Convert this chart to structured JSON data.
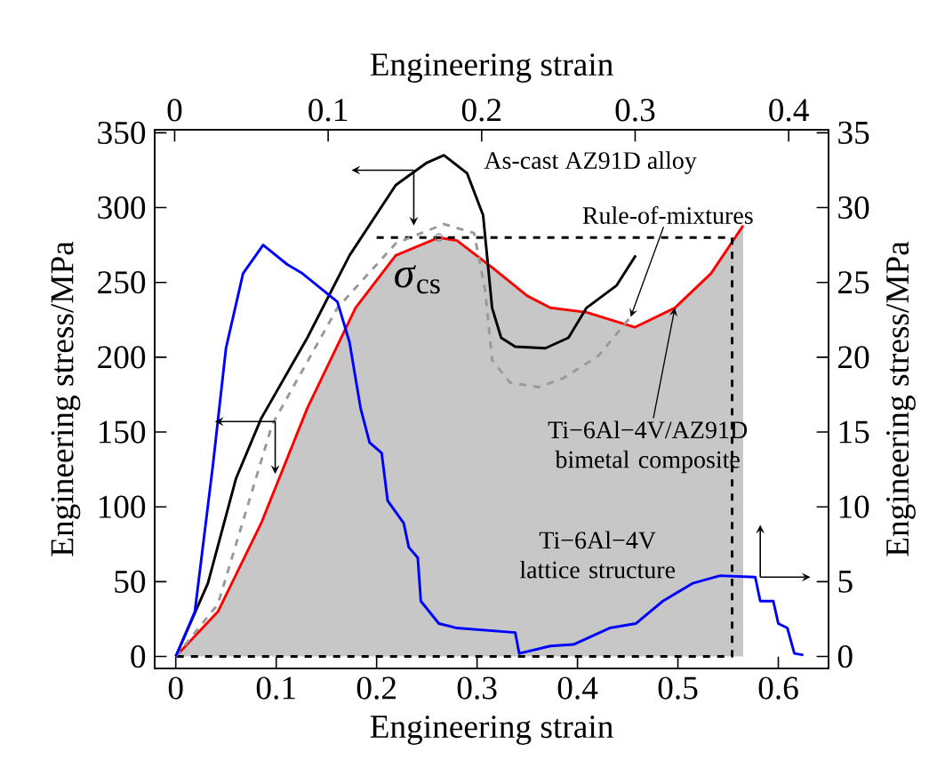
{
  "chart_data": {
    "type": "line",
    "xlabel": "Engineering strain",
    "x2label": "Engineering strain",
    "ylabel": "Engineering stress/MPa",
    "y2label": "Engineering stress/MPa",
    "xlim": [
      -0.021,
      0.65
    ],
    "xticks": [
      0,
      0.1,
      0.2,
      0.3,
      0.4,
      0.5,
      0.6
    ],
    "x2lim": [
      -0.013,
      0.426
    ],
    "x2ticks": [
      0,
      0.1,
      0.2,
      0.3,
      0.4
    ],
    "ylim": [
      -8,
      352
    ],
    "yticks": [
      0,
      50,
      100,
      150,
      200,
      250,
      300,
      350
    ],
    "y2lim": [
      -0.8,
      35.2
    ],
    "y2ticks": [
      0,
      5,
      10,
      15,
      20,
      25,
      30,
      35
    ],
    "series": [
      {
        "type": "area",
        "color": "#ff0000",
        "x": [
          0,
          0.042,
          0.085,
          0.131,
          0.179,
          0.219,
          0.262,
          0.28,
          0.315,
          0.35,
          0.373,
          0.409,
          0.457,
          0.497,
          0.533,
          0.565
        ],
        "values": [
          0,
          30,
          89,
          166,
          233,
          268,
          280,
          278,
          260,
          241,
          233,
          230,
          220,
          233,
          256,
          288
        ]
      },
      {
        "color": "#000000",
        "line_style": "dashed",
        "x": [
          0.2,
          0.554,
          0.554,
          0
        ],
        "values": [
          280,
          280,
          0,
          0
        ]
      },
      {
        "color": "#000000",
        "x": [
          0,
          0.032,
          0.06,
          0.085,
          0.131,
          0.173,
          0.219,
          0.25,
          0.267,
          0.29,
          0.306,
          0.315,
          0.324,
          0.338,
          0.368,
          0.391,
          0.409,
          0.439,
          0.458
        ],
        "values": [
          0,
          49,
          119,
          159,
          213,
          268,
          315,
          330,
          335,
          323,
          295,
          233,
          213,
          207,
          206,
          213,
          233,
          248,
          268
        ]
      },
      {
        "color": "#999999",
        "line_style": "dashed",
        "x": [
          0,
          0.042,
          0.096,
          0.161,
          0.219,
          0.267,
          0.297,
          0.308,
          0.315,
          0.333,
          0.361,
          0.386,
          0.421,
          0.453
        ],
        "values": [
          0,
          35,
          155,
          233,
          276,
          289,
          283,
          245,
          198,
          183,
          180,
          186,
          201,
          227
        ]
      },
      {
        "color": "#0000ff",
        "x": [
          0,
          0.019,
          0.037,
          0.05,
          0.067,
          0.087,
          0.111,
          0.126,
          0.161,
          0.173,
          0.184,
          0.193,
          0.205,
          0.211,
          0.227,
          0.232,
          0.241,
          0.244,
          0.262,
          0.28,
          0.338,
          0.342,
          0.373,
          0.396,
          0.432,
          0.458,
          0.485,
          0.515,
          0.542,
          0.577,
          0.582,
          0.595,
          0.6,
          0.609,
          0.616,
          0.625
        ],
        "values": [
          0,
          30,
          128,
          206,
          256,
          275,
          262,
          256,
          237,
          210,
          166,
          143,
          136,
          104,
          89,
          73,
          66,
          37,
          22,
          19,
          16,
          2,
          7,
          8,
          19,
          22,
          37,
          49,
          54,
          53,
          37,
          37,
          22,
          19,
          2,
          1
        ]
      }
    ],
    "annotations": [
      "As-cast AZ91D alloy",
      {
        "text": "Rule-of-mixtures",
        "x": 0.453,
        "y": 227
      },
      {
        "text": "*σ*$_{cs}$",
        "x": 0.262,
        "y": 280
      },
      {
        "text": "Ti−6Al−4V/AZ91D bimetal composite",
        "x": 0.497,
        "y": 233
      },
      "Ti−6Al−4V lattice structure"
    ]
  }
}
